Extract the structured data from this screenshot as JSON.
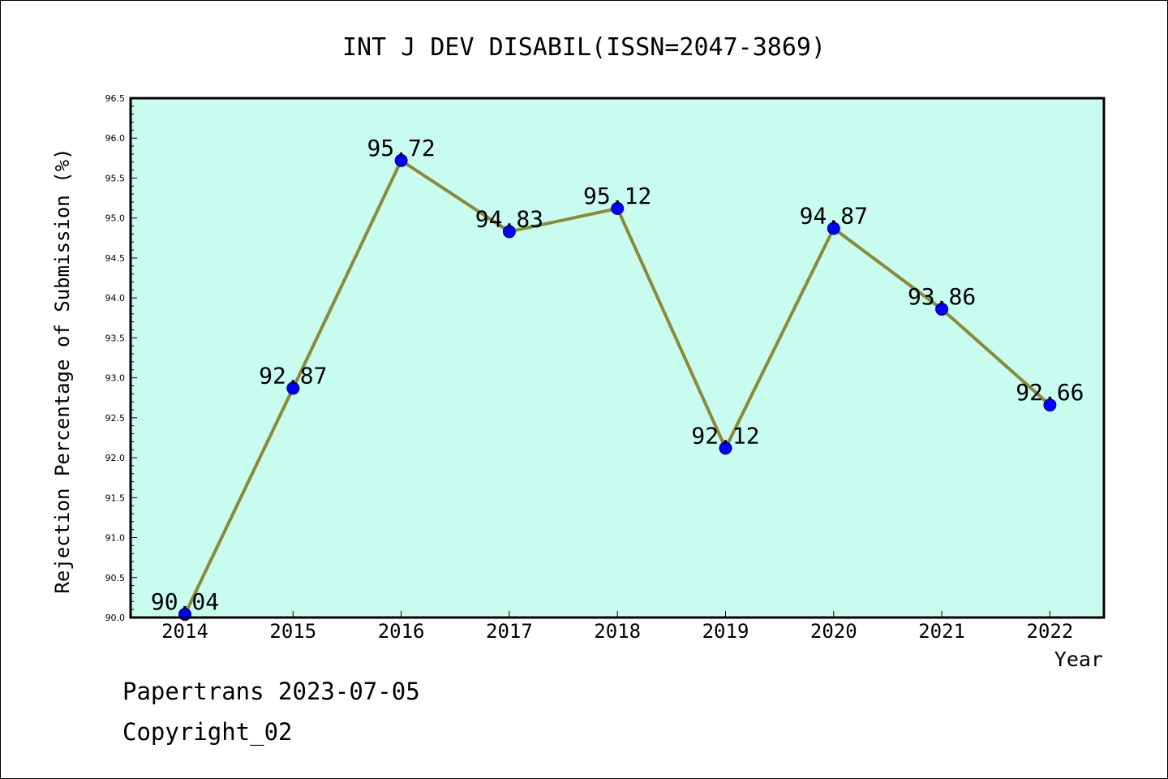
{
  "footer": {
    "line1": "Papertrans 2023-07-05",
    "line2": "Copyright_02"
  },
  "chart_data": {
    "type": "line",
    "title": "INT J DEV DISABIL(ISSN=2047-3869)",
    "xlabel": "Year",
    "ylabel": "Rejection Percentage of Submission (%)",
    "categories": [
      "2014",
      "2015",
      "2016",
      "2017",
      "2018",
      "2019",
      "2020",
      "2021",
      "2022"
    ],
    "values": [
      90.04,
      92.87,
      95.72,
      94.83,
      95.12,
      92.12,
      94.87,
      93.86,
      92.66
    ],
    "data_labels": [
      "90.04",
      "92.87",
      "95.72",
      "94.83",
      "95.12",
      "92.12",
      "94.87",
      "93.86",
      "92.66"
    ],
    "ylim": [
      90.0,
      96.5
    ],
    "yticks": [
      "90.0",
      "90.5",
      "91.0",
      "91.5",
      "92.0",
      "92.5",
      "93.0",
      "93.5",
      "94.0",
      "94.5",
      "95.0",
      "95.5",
      "96.0",
      "96.5"
    ],
    "colors": {
      "plot_background": "#c8fcee",
      "line": "#8b8a3c",
      "marker": "#0000ff",
      "axis": "#000000"
    },
    "grid": false,
    "legend": "none"
  }
}
